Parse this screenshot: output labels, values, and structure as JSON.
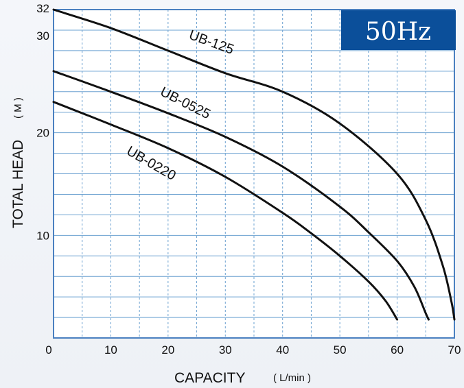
{
  "chart_data": {
    "type": "line",
    "badge": "50Hz",
    "xlabel": "CAPACITY",
    "xunit": "( L/min )",
    "ylabel": "TOTAL HEAD",
    "yunit": "( M )",
    "xlim": [
      0,
      70
    ],
    "ylim": [
      0,
      32
    ],
    "x_ticks": [
      "0",
      "10",
      "20",
      "30",
      "40",
      "50",
      "60",
      "70"
    ],
    "y_ticks": [
      "10",
      "20",
      "30",
      "32"
    ],
    "grid": true,
    "colors": {
      "grid": "#6aa0d0",
      "axis": "#4a80c0",
      "badge": "#0b4f9a",
      "line": "#111111"
    },
    "series": [
      {
        "name": "UB-125",
        "x": [
          0,
          10,
          20,
          30,
          40,
          50,
          60,
          65,
          68,
          69.5,
          70
        ],
        "y": [
          32,
          30.2,
          28,
          25.8,
          24,
          20.9,
          16,
          11.5,
          7,
          3.5,
          1.8
        ]
      },
      {
        "name": "UB-0525",
        "x": [
          0,
          10,
          20,
          30,
          40,
          50,
          55,
          60,
          63,
          65,
          65.5
        ],
        "y": [
          26,
          24,
          21.9,
          19.6,
          16.7,
          12.8,
          10.3,
          7.5,
          5,
          2.4,
          1.8
        ]
      },
      {
        "name": "UB-0220",
        "x": [
          0,
          10,
          20,
          30,
          40,
          45,
          50,
          55,
          58,
          60
        ],
        "y": [
          23,
          20.8,
          18.5,
          15.7,
          12.2,
          10.2,
          8,
          5.5,
          3.6,
          1.8
        ]
      }
    ]
  }
}
